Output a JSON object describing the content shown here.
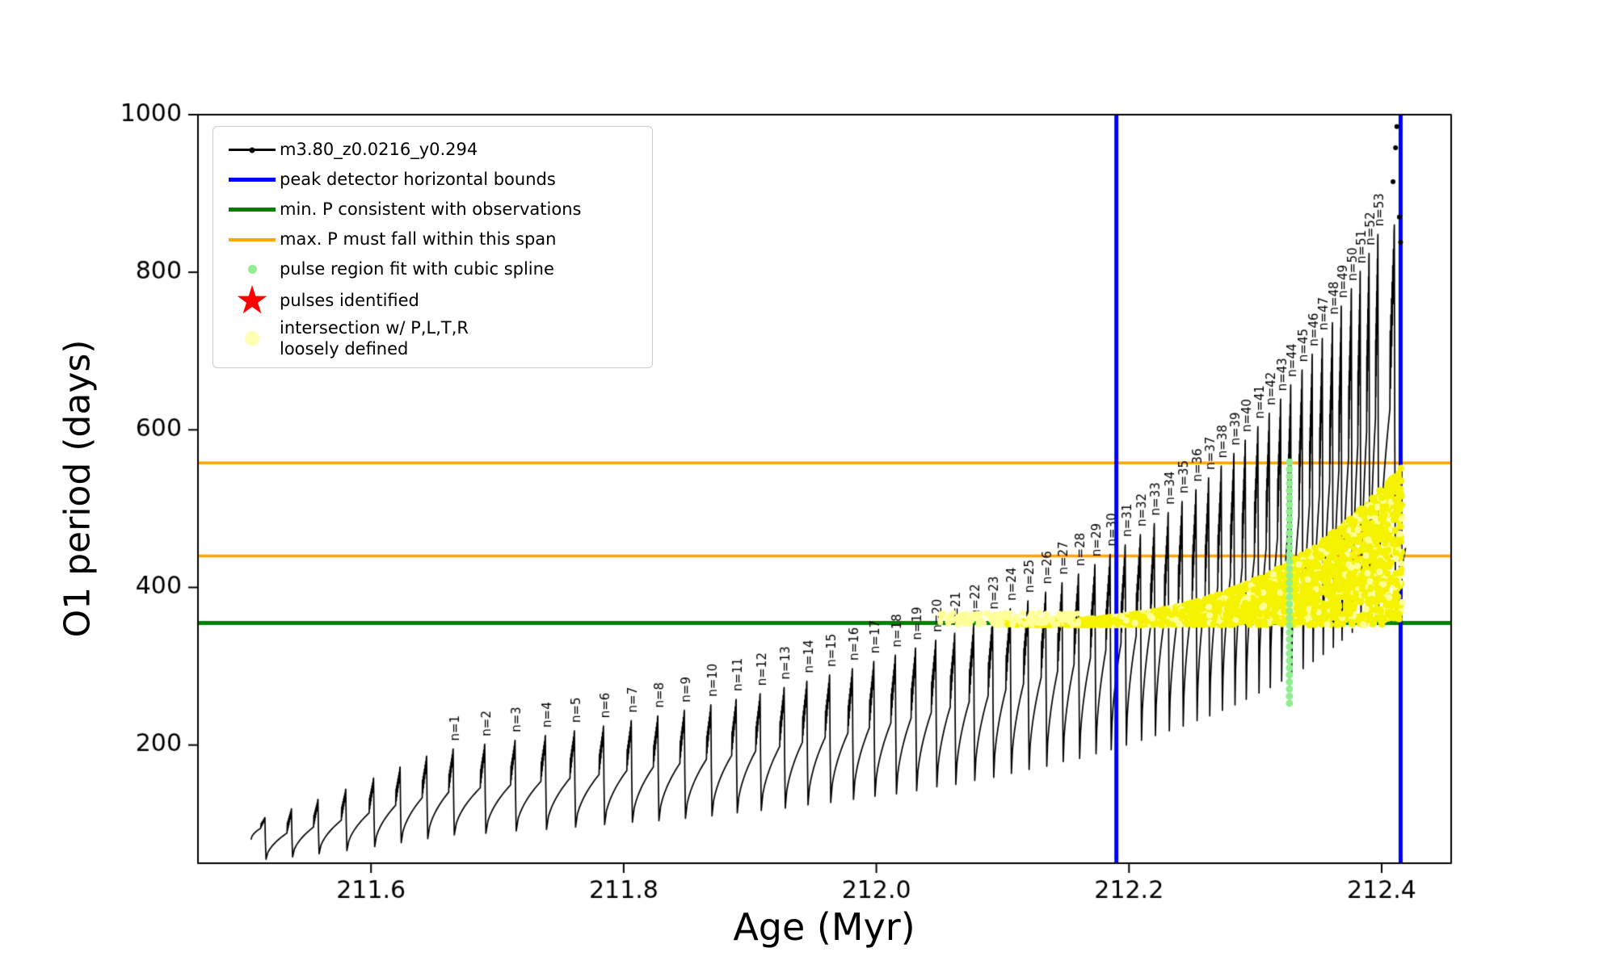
{
  "legend": {
    "entries": [
      {
        "id": "series",
        "label": "m3.80_z0.0216_y0.294",
        "marker": "line-dot",
        "color": "#000000"
      },
      {
        "id": "peak-bounds",
        "label": "peak detector horizontal bounds",
        "marker": "line-thick",
        "color": "#0000FF"
      },
      {
        "id": "min-p",
        "label": "min. P consistent with observations",
        "marker": "line-thick",
        "color": "#008000"
      },
      {
        "id": "max-p",
        "label": "max. P must fall within this span",
        "marker": "line",
        "color": "#FFA500"
      },
      {
        "id": "spline",
        "label": "pulse region fit with cubic spline",
        "marker": "dot",
        "color": "#90EE90"
      },
      {
        "id": "pulses",
        "label": "pulses identified",
        "marker": "star",
        "color": "#FF0000",
        "glyph": "★"
      },
      {
        "id": "intersection",
        "label": "intersection w/ P,L,T,R\nloosely defined",
        "marker": "dot-large",
        "color": "#FFFFB3"
      }
    ]
  },
  "chart_data": {
    "type": "line",
    "title": "",
    "xlabel": "Age (Myr)",
    "ylabel": "O1 period (days)",
    "xlim": [
      211.463,
      212.455
    ],
    "ylim": [
      50,
      1000
    ],
    "x_ticks": {
      "values": [
        211.6,
        211.8,
        212.0,
        212.2,
        212.4
      ],
      "labels": [
        "211.6",
        "211.8",
        "212.0",
        "212.2",
        "212.4"
      ]
    },
    "y_ticks": {
      "values": [
        200,
        400,
        600,
        800,
        1000
      ],
      "labels": [
        "200",
        "400",
        "600",
        "800",
        "1000"
      ]
    },
    "series_name": "m3.80_z0.0216_y0.294",
    "pulse_label_prefix": "n=",
    "colors": {
      "series": "#000000",
      "peak_bounds": "#0000FF",
      "min_line": "#008000",
      "max_span": "#FFA500",
      "spline_dots": "#90EE90",
      "yellow_main": "#F5F300",
      "yellow_pale": "#FFFF99"
    },
    "peak_bounds_x": [
      212.19,
      212.415
    ],
    "min_P": 355,
    "max_P_span": [
      440,
      558
    ],
    "start": [
      211.505,
      80
    ],
    "pre_pulses": [
      [
        211.516,
        108,
        55
      ],
      [
        211.537,
        119,
        58
      ],
      [
        211.558,
        131,
        62
      ],
      [
        211.58,
        144,
        66
      ],
      [
        211.602,
        158,
        71
      ],
      [
        211.623,
        172,
        76
      ],
      [
        211.644,
        186,
        81
      ]
    ],
    "pulses": [
      [
        1,
        211.665,
        195,
        86
      ],
      [
        2,
        211.69,
        201,
        88
      ],
      [
        3,
        211.714,
        206,
        91
      ],
      [
        4,
        211.738,
        212,
        93
      ],
      [
        5,
        211.761,
        218,
        96
      ],
      [
        6,
        211.784,
        224,
        99
      ],
      [
        7,
        211.806,
        231,
        102
      ],
      [
        8,
        211.827,
        237,
        104
      ],
      [
        9,
        211.848,
        244,
        107
      ],
      [
        10,
        211.869,
        251,
        110
      ],
      [
        11,
        211.889,
        258,
        114
      ],
      [
        12,
        211.908,
        265,
        117
      ],
      [
        13,
        211.927,
        273,
        120
      ],
      [
        14,
        211.945,
        281,
        124
      ],
      [
        15,
        211.963,
        289,
        127
      ],
      [
        16,
        211.981,
        297,
        131
      ],
      [
        17,
        211.998,
        306,
        135
      ],
      [
        18,
        212.015,
        314,
        138
      ],
      [
        19,
        212.031,
        323,
        142
      ],
      [
        20,
        212.047,
        333,
        147
      ],
      [
        21,
        212.062,
        342,
        150
      ],
      [
        22,
        212.077,
        352,
        155
      ],
      [
        23,
        212.092,
        362,
        159
      ],
      [
        24,
        212.106,
        373,
        164
      ],
      [
        25,
        212.12,
        383,
        169
      ],
      [
        26,
        212.134,
        394,
        173
      ],
      [
        27,
        212.147,
        406,
        179
      ],
      [
        28,
        212.16,
        417,
        183
      ],
      [
        29,
        212.173,
        429,
        189
      ],
      [
        30,
        212.185,
        442,
        194
      ],
      [
        31,
        212.197,
        454,
        200
      ],
      [
        32,
        212.209,
        467,
        206
      ],
      [
        33,
        212.22,
        481,
        212
      ],
      [
        34,
        212.231,
        495,
        218
      ],
      [
        35,
        212.242,
        509,
        224
      ],
      [
        36,
        212.253,
        524,
        231
      ],
      [
        37,
        212.263,
        539,
        237
      ],
      [
        38,
        212.273,
        554,
        244
      ],
      [
        39,
        212.283,
        570,
        251
      ],
      [
        40,
        212.292,
        587,
        258
      ],
      [
        41,
        212.302,
        604,
        266
      ],
      [
        42,
        212.311,
        621,
        273
      ],
      [
        43,
        212.32,
        639,
        281
      ],
      [
        44,
        212.328,
        657,
        289
      ],
      [
        45,
        212.337,
        676,
        297
      ],
      [
        46,
        212.345,
        696,
        306
      ],
      [
        47,
        212.353,
        716,
        315
      ],
      [
        48,
        212.361,
        736,
        324
      ],
      [
        49,
        212.368,
        757,
        333
      ],
      [
        50,
        212.376,
        779,
        343
      ],
      [
        51,
        212.383,
        801,
        352
      ],
      [
        52,
        212.39,
        824,
        363
      ],
      [
        53,
        212.397,
        848,
        373
      ]
    ],
    "final_pulse": [
      212.41,
      860,
      380
    ],
    "stray_points": [
      [
        212.412,
        985
      ],
      [
        212.411,
        958
      ],
      [
        212.409,
        915
      ],
      [
        212.414,
        870
      ],
      [
        212.415,
        838
      ]
    ],
    "spline_dots": {
      "x": 212.327,
      "y_min": 253,
      "y_max": 562,
      "step": 9
    },
    "yellow_region": {
      "x_min": 212.09,
      "x_max": 212.416,
      "y_base": 352,
      "top_rise": 195,
      "top_exponent": 3,
      "n_dots": 2600
    },
    "yellow_tail": {
      "x_min": 212.05,
      "x_max": 212.16,
      "y_min": 352,
      "y_max": 368,
      "n_dots": 160
    }
  }
}
